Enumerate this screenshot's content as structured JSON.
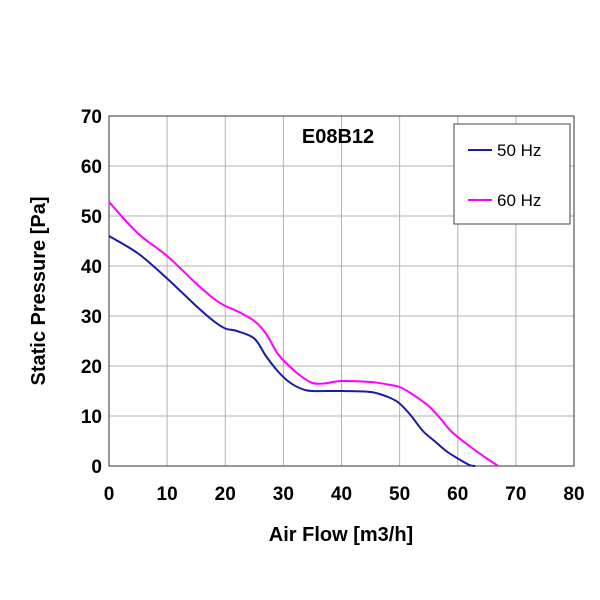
{
  "chart_data": {
    "type": "line",
    "title": "E08B12",
    "xlabel": "Air Flow [m3/h]",
    "ylabel": "Static Pressure [Pa]",
    "xlim": [
      0,
      80
    ],
    "ylim": [
      0,
      70
    ],
    "x_ticks": [
      "0",
      "10",
      "20",
      "30",
      "40",
      "50",
      "60",
      "70",
      "80"
    ],
    "y_ticks": [
      "0",
      "10",
      "20",
      "30",
      "40",
      "50",
      "60",
      "70"
    ],
    "grid": true,
    "legend_position": "top-right",
    "series": [
      {
        "name": "50 Hz",
        "color": "#1a1aa6",
        "points": [
          [
            0,
            46
          ],
          [
            5,
            42.5
          ],
          [
            10,
            37.5
          ],
          [
            15,
            32
          ],
          [
            18,
            29
          ],
          [
            20,
            27.5
          ],
          [
            22,
            27
          ],
          [
            25,
            25.5
          ],
          [
            27,
            22
          ],
          [
            29,
            19
          ],
          [
            31,
            16.8
          ],
          [
            33,
            15.5
          ],
          [
            35,
            15
          ],
          [
            40,
            15
          ],
          [
            45,
            14.8
          ],
          [
            48,
            13.8
          ],
          [
            50,
            12.5
          ],
          [
            52,
            10
          ],
          [
            54,
            7
          ],
          [
            56,
            5
          ],
          [
            58,
            3
          ],
          [
            60,
            1.5
          ],
          [
            62,
            0.2
          ],
          [
            63,
            0
          ]
        ]
      },
      {
        "name": "60 Hz",
        "color": "#ff00ff",
        "points": [
          [
            0,
            52.8
          ],
          [
            5,
            46.5
          ],
          [
            10,
            42
          ],
          [
            15,
            36.5
          ],
          [
            18,
            33.5
          ],
          [
            20,
            32
          ],
          [
            22,
            31
          ],
          [
            25,
            29
          ],
          [
            27,
            26.5
          ],
          [
            29,
            22.5
          ],
          [
            31,
            20
          ],
          [
            33,
            18
          ],
          [
            35,
            16.6
          ],
          [
            37,
            16.5
          ],
          [
            40,
            17
          ],
          [
            45,
            16.8
          ],
          [
            48,
            16.3
          ],
          [
            50,
            15.8
          ],
          [
            52,
            14.5
          ],
          [
            55,
            12
          ],
          [
            57,
            9.5
          ],
          [
            59,
            6.8
          ],
          [
            62,
            4
          ],
          [
            65,
            1.5
          ],
          [
            67,
            0
          ]
        ]
      }
    ]
  }
}
